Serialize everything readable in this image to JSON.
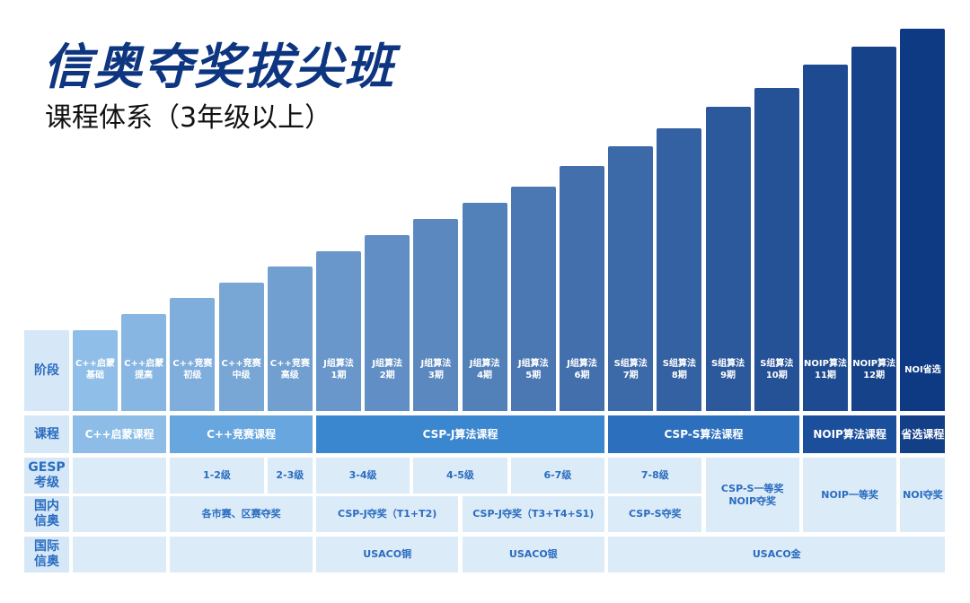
{
  "header": {
    "title": "信奥夺奖拔尖班",
    "subtitle": "课程体系（3年级以上）"
  },
  "row_labels": [
    "阶段",
    "课程",
    "GESP\n考级",
    "国内\n信奥",
    "国际\n信奥"
  ],
  "stages": [
    "C++启蒙\n基础",
    "C++启蒙\n提高",
    "C++竞赛\n初级",
    "C++竞赛\n中级",
    "C++竞赛\n高级",
    "J组算法\n1期",
    "J组算法\n2期",
    "J组算法\n3期",
    "J组算法\n4期",
    "J组算法\n5期",
    "J组算法\n6期",
    "S组算法\n7期",
    "S组算法\n8期",
    "S组算法\n9期",
    "S组算法\n10期",
    "NOIP算法\n11期",
    "NOIP算法\n12期",
    "NOI省选"
  ],
  "courses": [
    "C++启蒙课程",
    "C++竞赛课程",
    "CSP-J算法课程",
    "CSP-S算法课程",
    "NOIP算法课程",
    "省选课程"
  ],
  "gesp": [
    "1-2级",
    "2-3级",
    "3-4级",
    "4-5级",
    "6-7级",
    "7-8级",
    "CSP-S一等奖\nNOIP夺奖",
    "NOIP一等奖",
    "NOI夺奖"
  ],
  "domestic": [
    "各市赛、区赛夺奖",
    "CSP-J夺奖（T1+T2)",
    "CSP-J夺奖（T3+T4+S1)",
    "CSP-S夺奖"
  ],
  "international": [
    "USACO铜",
    "USACO银",
    "USACO金"
  ]
}
